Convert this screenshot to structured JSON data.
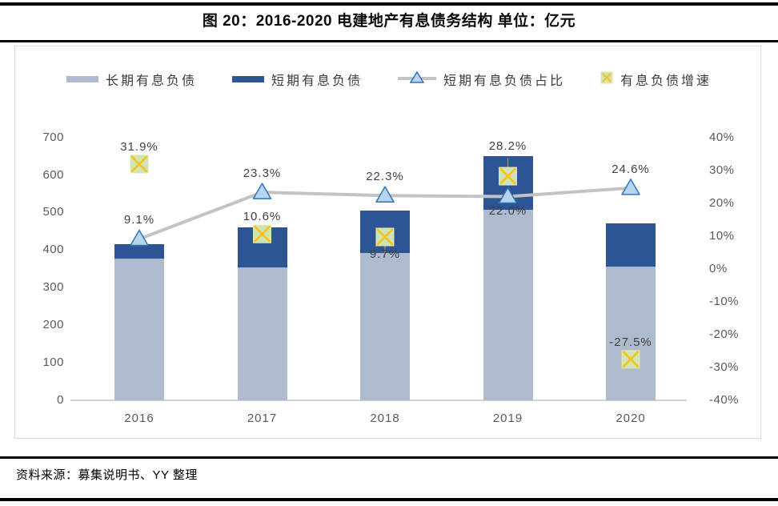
{
  "title": "图 20：2016-2020 电建地产有息债务结构 单位：亿元",
  "source": "资料来源：募集说明书、YY 整理",
  "legend": [
    {
      "label": "长期有息负债",
      "marker": "bar-swatch-light"
    },
    {
      "label": "短期有息负债",
      "marker": "bar-swatch-dark"
    },
    {
      "label": "短期有息负债占比",
      "marker": "line-triangle"
    },
    {
      "label": "有息负债增速",
      "marker": "x-square"
    }
  ],
  "colors": {
    "long_bar": "#aebacd",
    "short_bar": "#2e5593",
    "line": "#c3c3c3",
    "triangle_fill": "#b8d4ee",
    "triangle_stroke": "#2e75b6",
    "x_fill": "#cfe4b4",
    "x_edge": "#e0e6a8",
    "x_stroke": "#fcc012",
    "leader": "#a0a0a0"
  },
  "chart_data": {
    "type": "combo",
    "title": "图 20：2016-2020 电建地产有息债务结构 单位：亿元",
    "unit": "亿元",
    "categories": [
      "2016",
      "2017",
      "2018",
      "2019",
      "2020"
    ],
    "series": [
      {
        "name": "长期有息负债",
        "type": "bar",
        "stacked": true,
        "axis": "left",
        "values": [
          377,
          354,
          393,
          507,
          355
        ]
      },
      {
        "name": "短期有息负债",
        "type": "bar",
        "stacked": true,
        "axis": "left",
        "values": [
          38,
          107,
          113,
          143,
          116
        ]
      },
      {
        "name": "短期有息负债占比",
        "type": "line",
        "axis": "right",
        "values": [
          9.1,
          23.3,
          22.3,
          22.0,
          24.6
        ],
        "labels": [
          "9.1%",
          "23.3%",
          "22.3%",
          "22.0%",
          "24.6%"
        ],
        "label_pos": [
          "above",
          "above",
          "above",
          "below",
          "above"
        ]
      },
      {
        "name": "有息负债增速",
        "type": "scatter",
        "axis": "right",
        "values": [
          31.9,
          10.6,
          9.7,
          28.2,
          -27.5
        ],
        "labels": [
          "31.9%",
          "10.6%",
          "9.7%",
          "28.2%",
          "-27.5%"
        ],
        "label_pos": [
          "above",
          "above",
          "below",
          "above_bar",
          "above"
        ]
      }
    ],
    "left_axis": {
      "min": 0,
      "max": 700,
      "ticks": [
        0,
        100,
        200,
        300,
        400,
        500,
        600,
        700
      ]
    },
    "right_axis": {
      "min": -40,
      "max": 40,
      "ticks": [
        "40%",
        "30%",
        "20%",
        "10%",
        "0%",
        "-10%",
        "-20%",
        "-30%",
        "-40%"
      ]
    },
    "grid": false,
    "legend_position": "top"
  }
}
